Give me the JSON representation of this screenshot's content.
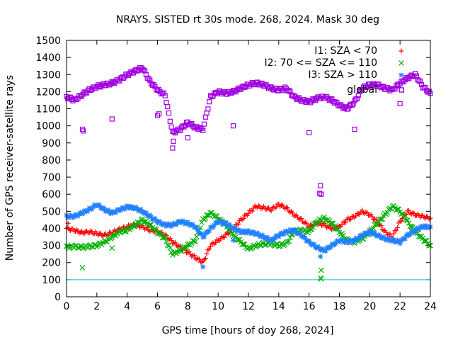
{
  "chart_data": {
    "type": "scatter",
    "title": "NRAYS. SISTED rt 30s mode. 268, 2024. Mask 30 deg",
    "xlabel": "GPS time [hours of doy 268, 2024]",
    "ylabel": "Number of GPS receiver-satellite rays",
    "xlim": [
      0,
      24
    ],
    "ylim": [
      0,
      1500
    ],
    "xticks": [
      "0",
      "2",
      "4",
      "6",
      "8",
      "10",
      "12",
      "14",
      "16",
      "18",
      "20",
      "22",
      "24"
    ],
    "yticks": [
      "0",
      "100",
      "200",
      "300",
      "400",
      "500",
      "600",
      "700",
      "800",
      "900",
      "1000",
      "1100",
      "1200",
      "1300",
      "1400",
      "1500"
    ],
    "legend_position": "top-right",
    "threshold_line": {
      "y": 100,
      "color": "#00c8c8"
    },
    "series": [
      {
        "name": "I1: SZA < 70",
        "marker": "+",
        "color": "#ff0000",
        "x": [
          0,
          0.5,
          1,
          1.5,
          2,
          2.5,
          3,
          3.5,
          4,
          4.5,
          5,
          5.5,
          6,
          6.5,
          7,
          7.5,
          8,
          8.5,
          9,
          9.5,
          10,
          10.5,
          11,
          11.5,
          12,
          12.5,
          13,
          13.5,
          14,
          14.5,
          15,
          15.5,
          16,
          16.5,
          17,
          17.5,
          18,
          18.5,
          19,
          19.5,
          20,
          20.5,
          21,
          21.5,
          22,
          22.5,
          23,
          23.5,
          24
        ],
        "y": [
          400,
          390,
          375,
          380,
          370,
          360,
          375,
          395,
          410,
          420,
          410,
          390,
          380,
          360,
          320,
          290,
          260,
          230,
          200,
          300,
          330,
          360,
          400,
          450,
          490,
          530,
          520,
          510,
          540,
          520,
          480,
          450,
          410,
          430,
          420,
          400,
          410,
          450,
          470,
          500,
          480,
          440,
          380,
          350,
          440,
          500,
          480,
          470,
          460
        ]
      },
      {
        "name": "I2: 70 <= SZA <= 110",
        "marker": "x",
        "color": "#00b000",
        "x": [
          0,
          0.5,
          1,
          1.5,
          2,
          2.5,
          3,
          3.5,
          4,
          4.5,
          5,
          5.5,
          6,
          6.5,
          7,
          7.5,
          8,
          8.5,
          9,
          9.5,
          10,
          10.5,
          11,
          11.5,
          12,
          12.5,
          13,
          13.5,
          14,
          14.5,
          15,
          15.5,
          16,
          16.5,
          17,
          17.5,
          18,
          18.5,
          19,
          19.5,
          20,
          20.5,
          21,
          21.5,
          22,
          22.5,
          23,
          23.5,
          24
        ],
        "y": [
          290,
          295,
          290,
          295,
          300,
          320,
          350,
          380,
          390,
          420,
          450,
          420,
          380,
          340,
          250,
          270,
          300,
          330,
          450,
          490,
          460,
          420,
          360,
          320,
          280,
          300,
          310,
          310,
          300,
          310,
          380,
          390,
          380,
          440,
          460,
          430,
          380,
          330,
          320,
          340,
          380,
          430,
          480,
          530,
          500,
          440,
          380,
          340,
          300
        ]
      },
      {
        "name": "I3: SZA > 110",
        "marker": "*",
        "color": "#2080ff",
        "x": [
          0,
          0.5,
          1,
          1.5,
          2,
          2.5,
          3,
          3.5,
          4,
          4.5,
          5,
          5.5,
          6,
          6.5,
          7,
          7.5,
          8,
          8.5,
          9,
          9.5,
          10,
          10.5,
          11,
          11.5,
          12,
          12.5,
          13,
          13.5,
          14,
          14.5,
          15,
          15.5,
          16,
          16.5,
          17,
          17.5,
          18,
          18.5,
          19,
          19.5,
          20,
          20.5,
          21,
          21.5,
          22,
          22.5,
          23,
          23.5,
          24
        ],
        "y": [
          470,
          470,
          490,
          510,
          540,
          510,
          490,
          510,
          525,
          520,
          500,
          470,
          440,
          420,
          420,
          440,
          430,
          410,
          350,
          400,
          440,
          430,
          400,
          380,
          380,
          370,
          350,
          330,
          360,
          380,
          390,
          360,
          320,
          290,
          270,
          300,
          330,
          320,
          330,
          360,
          380,
          360,
          340,
          330,
          320,
          360,
          390,
          410,
          410
        ]
      },
      {
        "name": "global",
        "marker": "square",
        "color": "#a000e0",
        "x": [
          0,
          0.5,
          1,
          1.5,
          2,
          2.5,
          3,
          3.5,
          4,
          4.5,
          5,
          5.5,
          6,
          6.5,
          7,
          7.5,
          8,
          8.5,
          9,
          9.5,
          10,
          10.5,
          11,
          11.5,
          12,
          12.5,
          13,
          13.5,
          14,
          14.5,
          15,
          15.5,
          16,
          16.5,
          17,
          17.5,
          18,
          18.5,
          19,
          19.5,
          20,
          20.5,
          21,
          21.5,
          22,
          22.5,
          23,
          23.5,
          24
        ],
        "y": [
          1170,
          1150,
          1180,
          1210,
          1230,
          1240,
          1250,
          1270,
          1300,
          1320,
          1340,
          1260,
          1210,
          1180,
          960,
          980,
          1020,
          990,
          980,
          1170,
          1200,
          1190,
          1200,
          1220,
          1240,
          1250,
          1240,
          1220,
          1210,
          1220,
          1170,
          1150,
          1140,
          1160,
          1170,
          1150,
          1120,
          1100,
          1140,
          1220,
          1240,
          1240,
          1220,
          1210,
          1250,
          1280,
          1300,
          1230,
          1190
        ]
      }
    ],
    "outliers": {
      "I1: SZA < 70": {
        "x": [
          0.1
        ],
        "y": [
          430
        ]
      },
      "I2: 70 <= SZA <= 110": {
        "x": [
          1.05,
          3.0,
          16.75,
          16.8,
          16.8
        ],
        "y": [
          170,
          285,
          110,
          155,
          105
        ]
      },
      "I3: SZA > 110": {
        "x": [
          9.0,
          11.0,
          16.75
        ],
        "y": [
          175,
          330,
          235
        ]
      },
      "global": {
        "x": [
          1.05,
          1.1,
          3.0,
          6.0,
          6.1,
          7.0,
          7.05,
          8.0,
          11.0,
          16.0,
          16.75,
          16.8,
          16.7,
          19.0,
          22.0,
          22.1
        ],
        "y": [
          980,
          970,
          1040,
          1060,
          1070,
          870,
          910,
          930,
          1000,
          960,
          650,
          600,
          605,
          980,
          1130,
          1210
        ]
      }
    }
  }
}
